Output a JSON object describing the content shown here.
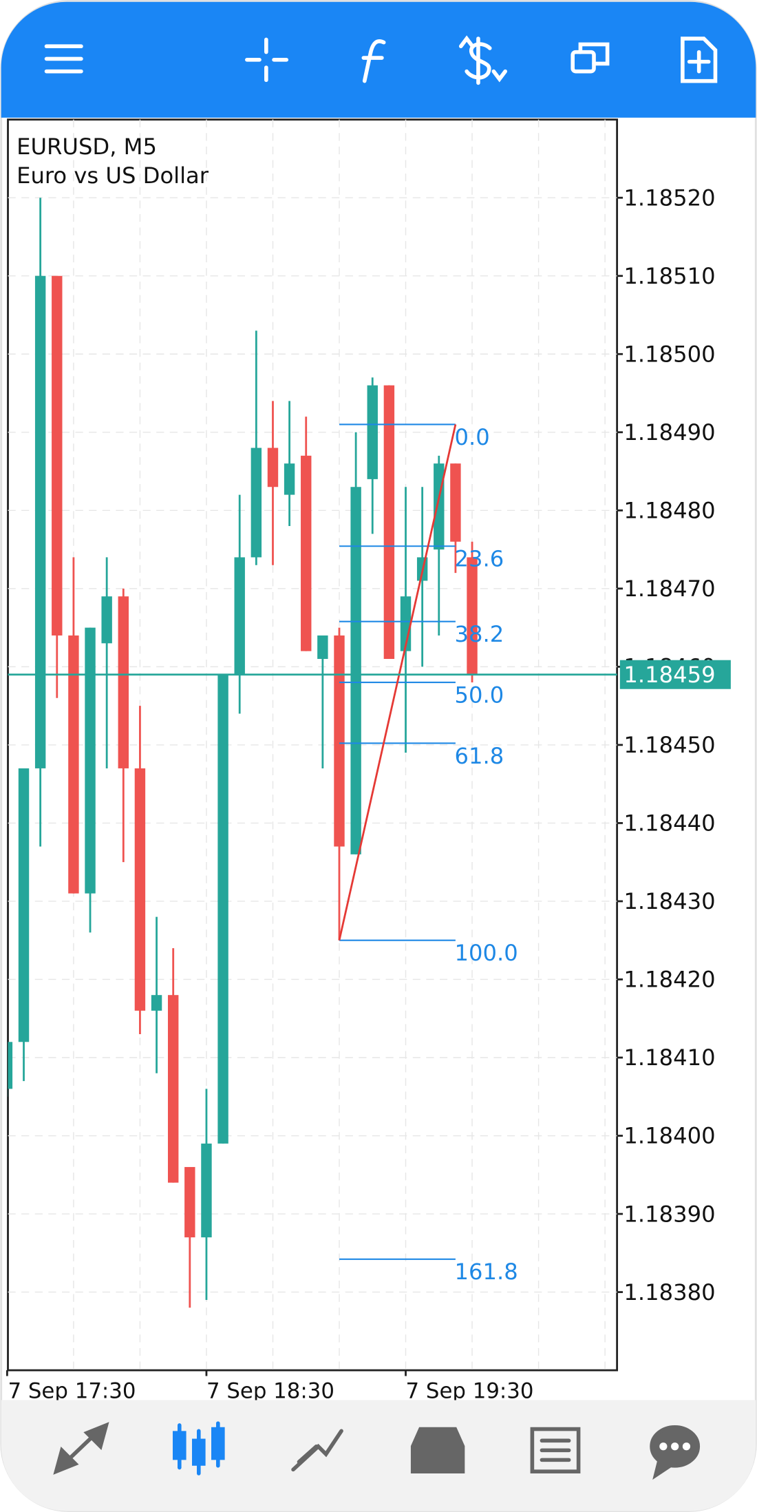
{
  "chart_data": {
    "type": "candlestick",
    "title": "EURUSD, M5",
    "subtitle": "Euro vs US Dollar",
    "categories": [
      "7 Sep 17:30",
      null,
      null,
      null,
      null,
      null,
      null,
      null,
      null,
      null,
      null,
      null,
      "7 Sep 18:30",
      null,
      null,
      null,
      null,
      null,
      null,
      null,
      null,
      null,
      null,
      null,
      "7 Sep 19:30",
      null,
      null,
      null,
      null
    ],
    "open": [
      1.18406,
      1.18412,
      1.18447,
      1.1851,
      1.18464,
      1.18431,
      1.18463,
      1.18469,
      1.18447,
      1.18416,
      1.18418,
      1.18396,
      1.18387,
      1.18399,
      1.18459,
      1.18474,
      1.18488,
      1.18482,
      1.18487,
      1.18461,
      1.18464,
      1.18436,
      1.18484,
      1.18496,
      1.18462,
      1.18471,
      1.18475,
      1.18486,
      1.18474
    ],
    "high": [
      1.18412,
      1.18447,
      1.1852,
      1.1851,
      1.18474,
      1.18465,
      1.18474,
      1.1847,
      1.18455,
      1.18428,
      1.18424,
      1.18396,
      1.18406,
      1.18459,
      1.18482,
      1.18503,
      1.18494,
      1.18494,
      1.18492,
      1.18464,
      1.18465,
      1.1849,
      1.18497,
      1.18496,
      1.18483,
      1.18483,
      1.18487,
      1.18486,
      1.18476
    ],
    "low": [
      1.18405,
      1.18407,
      1.18437,
      1.18456,
      1.18431,
      1.18426,
      1.18447,
      1.18435,
      1.18413,
      1.18408,
      1.18394,
      1.18378,
      1.18379,
      1.18399,
      1.18454,
      1.18473,
      1.18473,
      1.18478,
      1.18462,
      1.18447,
      1.18425,
      1.18436,
      1.18477,
      1.18461,
      1.18449,
      1.1846,
      1.18464,
      1.18472,
      1.18458
    ],
    "close": [
      1.18412,
      1.18447,
      1.1851,
      1.18464,
      1.18431,
      1.18465,
      1.18469,
      1.18447,
      1.18416,
      1.18418,
      1.18394,
      1.18387,
      1.18399,
      1.18459,
      1.18474,
      1.18488,
      1.18483,
      1.18486,
      1.18462,
      1.18464,
      1.18437,
      1.18483,
      1.18496,
      1.18461,
      1.18469,
      1.18474,
      1.18486,
      1.18476,
      1.18459
    ],
    "up_color": "#26a69a",
    "down_color": "#ef5350",
    "ylim": [
      1.1837,
      1.1853
    ],
    "yticks": [
      {
        "value": 1.1852,
        "label": "1.18520"
      },
      {
        "value": 1.1851,
        "label": "1.18510"
      },
      {
        "value": 1.185,
        "label": "1.18500"
      },
      {
        "value": 1.1849,
        "label": "1.18490"
      },
      {
        "value": 1.1848,
        "label": "1.18480"
      },
      {
        "value": 1.1847,
        "label": "1.18470"
      },
      {
        "value": 1.1846,
        "label": "1.18460"
      },
      {
        "value": 1.1845,
        "label": "1.18450"
      },
      {
        "value": 1.1844,
        "label": "1.18440"
      },
      {
        "value": 1.1843,
        "label": "1.18430"
      },
      {
        "value": 1.1842,
        "label": "1.18420"
      },
      {
        "value": 1.1841,
        "label": "1.18410"
      },
      {
        "value": 1.184,
        "label": "1.18400"
      },
      {
        "value": 1.1839,
        "label": "1.18390"
      },
      {
        "value": 1.1838,
        "label": "1.18380"
      }
    ],
    "grid": true,
    "current_price": {
      "value": 1.18459,
      "label": "1.18459"
    },
    "fibonacci": {
      "color": "#1e88e5",
      "line_color": "#e53935",
      "start": {
        "index": 20,
        "price": 1.18425
      },
      "end": {
        "index": 27,
        "price": 1.18491
      },
      "levels": [
        {
          "value": 0,
          "label": "0.0"
        },
        {
          "value": 23.6,
          "label": "23.6"
        },
        {
          "value": 38.2,
          "label": "38.2"
        },
        {
          "value": 50,
          "label": "50.0"
        },
        {
          "value": 61.8,
          "label": "61.8"
        },
        {
          "value": 100,
          "label": "100.0"
        },
        {
          "value": 161.8,
          "label": "161.8"
        }
      ]
    }
  }
}
